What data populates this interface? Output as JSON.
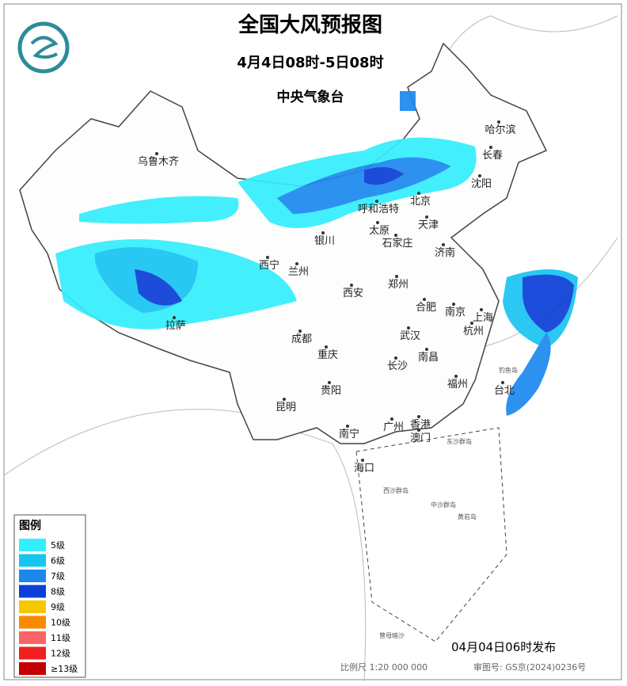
{
  "header": {
    "title": "全国大风预报图",
    "period": "4月4日08时-5日08时",
    "issuer": "中央气象台"
  },
  "cities": [
    "乌鲁木齐",
    "哈尔滨",
    "长春",
    "沈阳",
    "北京",
    "呼和浩特",
    "天津",
    "太原",
    "石家庄",
    "银川",
    "济南",
    "西宁",
    "兰州",
    "郑州",
    "西安",
    "合肥",
    "南京",
    "上海",
    "拉萨",
    "成都",
    "武汉",
    "杭州",
    "重庆",
    "南昌",
    "长沙",
    "福州",
    "台北",
    "贵阳",
    "昆明",
    "南宁",
    "广州",
    "香港",
    "澳门",
    "海口"
  ],
  "islands": [
    "东沙群岛",
    "西沙群岛",
    "中沙群岛",
    "黄岩岛",
    "钓鱼岛",
    "曾母暗沙"
  ],
  "legend": {
    "title": "图例",
    "items": [
      {
        "label": "5级",
        "color": "#34eefc"
      },
      {
        "label": "6级",
        "color": "#18c4f2"
      },
      {
        "label": "7级",
        "color": "#1c88ee"
      },
      {
        "label": "8级",
        "color": "#0c3ed8"
      },
      {
        "label": "9级",
        "color": "#f6c800"
      },
      {
        "label": "10级",
        "color": "#f88a00"
      },
      {
        "label": "11级",
        "color": "#f86464"
      },
      {
        "label": "12级",
        "color": "#f02020"
      },
      {
        "label": "≥13级",
        "color": "#c40000"
      }
    ]
  },
  "footer": {
    "issued": "04月04日06时发布",
    "scale": "比例尺 1:20 000 000",
    "map_number": "审图号: GS京(2024)0236号"
  }
}
